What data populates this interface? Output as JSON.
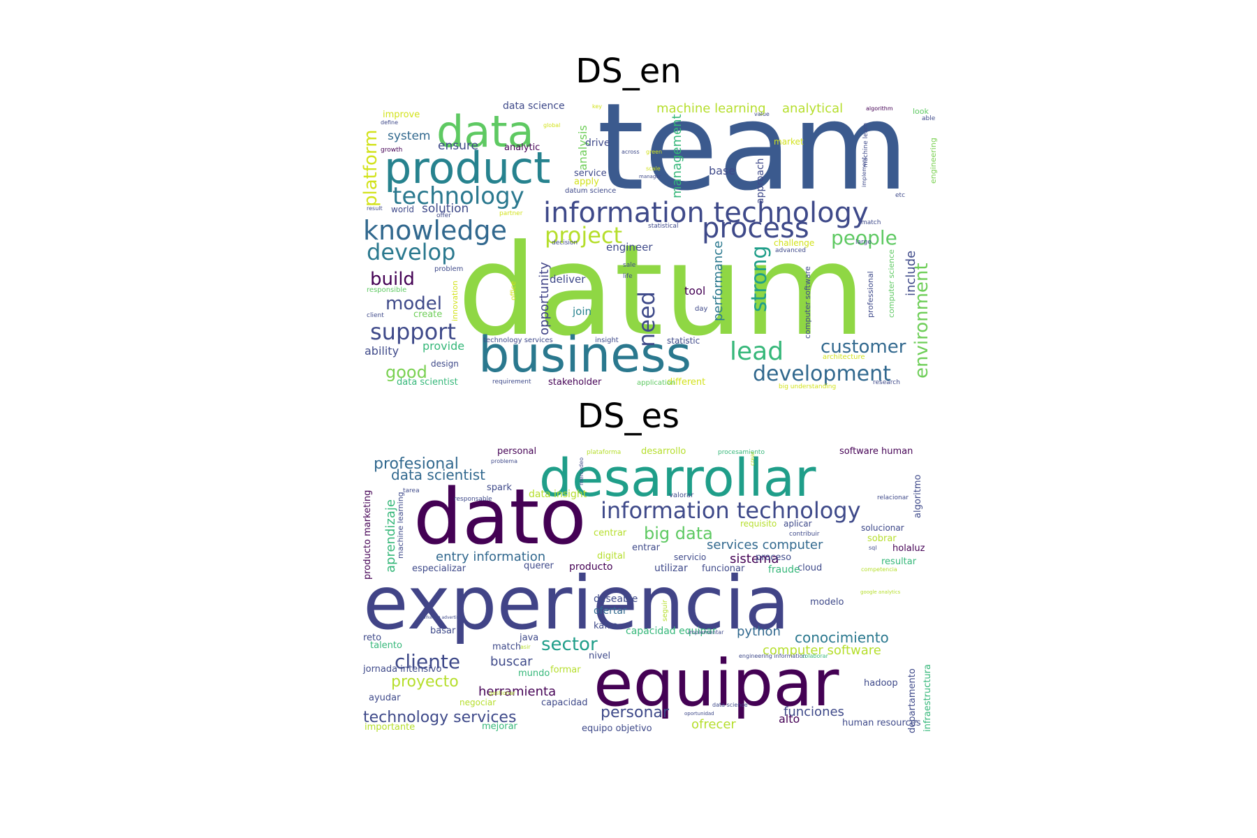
{
  "titles": {
    "en": "DS_en",
    "es": "DS_es"
  },
  "palette": [
    "#440154",
    "#482878",
    "#3e4989",
    "#31688e",
    "#26828e",
    "#1f9e89",
    "#35b779",
    "#6ece58",
    "#b5de2b",
    "#fde725"
  ],
  "clouds": {
    "en": [
      {
        "t": "datum",
        "s": 2,
        "c": "#8fd744"
      },
      {
        "t": "team",
        "s": 6,
        "c": "#3b5a8e"
      },
      {
        "t": "business",
        "s": 14,
        "c": "#2a788e"
      },
      {
        "t": "product",
        "s": 2,
        "c": "#26828e"
      },
      {
        "t": "data",
        "s": 2,
        "c": "#5ec962"
      },
      {
        "t": "information technology",
        "s": 10,
        "c": "#3e4989"
      },
      {
        "t": "process",
        "s": 12,
        "c": "#3e4989"
      },
      {
        "t": "technology",
        "s": 18,
        "c": "#2a788e"
      },
      {
        "t": "knowledge",
        "s": 2,
        "c": "#31688e"
      },
      {
        "t": "project",
        "s": 2,
        "c": "#b5de2b"
      },
      {
        "t": "develop",
        "s": 20,
        "c": "#2a788e"
      },
      {
        "t": "lead",
        "s": 2,
        "c": "#35b779"
      },
      {
        "t": "development",
        "s": 3,
        "c": "#31688e"
      },
      {
        "t": "support",
        "s": 3,
        "c": "#3e4989"
      },
      {
        "t": "customer",
        "s": 4,
        "c": "#31688e"
      },
      {
        "t": "model",
        "s": 2,
        "c": "#3e4989"
      },
      {
        "t": "build",
        "s": 3,
        "c": "#440154"
      },
      {
        "t": "people",
        "s": 2,
        "c": "#5ec962"
      },
      {
        "t": "good",
        "s": 1,
        "c": "#7ad151"
      },
      {
        "t": "environment",
        "s": 4,
        "c": "#6ece58"
      },
      {
        "t": "need",
        "s": 4,
        "c": "#3e4989"
      },
      {
        "t": "strong",
        "s": 2,
        "c": "#1f9e89"
      },
      {
        "t": "platform",
        "s": 5,
        "c": "#d2e21b"
      },
      {
        "t": "opportunity",
        "s": 2,
        "c": "#414487"
      },
      {
        "t": "management",
        "s": 8,
        "c": "#35b779"
      },
      {
        "t": "performance",
        "s": 5,
        "c": "#2a788e"
      },
      {
        "t": "include",
        "s": 4,
        "c": "#3e4989"
      },
      {
        "t": "machine learning",
        "s": 5,
        "c": "#b5de2b"
      },
      {
        "t": "analytical",
        "s": 8,
        "c": "#b5de2b"
      },
      {
        "t": "solution",
        "s": 6,
        "c": "#3e4989"
      },
      {
        "t": "system",
        "s": 7,
        "c": "#31688e"
      },
      {
        "t": "ensure",
        "s": 6,
        "c": "#3e4989"
      },
      {
        "t": "ability",
        "s": 9,
        "c": "#3e4989"
      },
      {
        "t": "provide",
        "s": 4,
        "c": "#35b779"
      },
      {
        "t": "tool",
        "s": 1,
        "c": "#440154"
      },
      {
        "t": "engineer",
        "s": 4,
        "c": "#3e4989"
      },
      {
        "t": "deliver",
        "s": 8,
        "c": "#3e4989"
      },
      {
        "t": "join",
        "s": 3,
        "c": "#26828e"
      },
      {
        "t": "analysis",
        "s": 2,
        "c": "#6ece58"
      },
      {
        "t": "drive",
        "s": 4,
        "c": "#3e4989"
      },
      {
        "t": "base",
        "s": 8,
        "c": "#3e4989"
      },
      {
        "t": "approach",
        "s": 7,
        "c": "#3e4989"
      },
      {
        "t": "service",
        "s": 9,
        "c": "#3e4989"
      },
      {
        "t": "apply",
        "s": 3,
        "c": "#d2e21b"
      },
      {
        "t": "analytic",
        "s": 12,
        "c": "#440154"
      },
      {
        "t": "data science",
        "s": 9,
        "c": "#3e4989"
      },
      {
        "t": "improve",
        "s": 3,
        "c": "#d2e21b"
      },
      {
        "t": "market",
        "s": 3,
        "c": "#d2e21b"
      },
      {
        "t": "challenge",
        "s": 7,
        "c": "#d2e21b"
      },
      {
        "t": "design",
        "s": 4,
        "c": "#3e4989"
      },
      {
        "t": "data scientist",
        "s": 6,
        "c": "#35b779"
      },
      {
        "t": "stakeholder",
        "s": 6,
        "c": "#440154"
      },
      {
        "t": "different",
        "s": 2,
        "c": "#d2e21b"
      },
      {
        "t": "create",
        "s": 5,
        "c": "#6ece58"
      },
      {
        "t": "world",
        "s": 6,
        "c": "#3e4989"
      },
      {
        "t": "statistic",
        "s": 9,
        "c": "#3e4989"
      },
      {
        "t": "computer science",
        "s": 4,
        "c": "#5ec962"
      },
      {
        "t": "professional",
        "s": 4,
        "c": "#3e4989"
      },
      {
        "t": "computer software",
        "s": 6,
        "c": "#3e4989"
      },
      {
        "t": "engineering",
        "s": 6,
        "c": "#7ad151"
      },
      {
        "t": "machine learn",
        "s": 9,
        "c": "#3e4989"
      },
      {
        "t": "implement",
        "s": 3,
        "c": "#3e4989"
      },
      {
        "t": "architecture",
        "s": 3,
        "c": "#d2e21b"
      },
      {
        "t": "research",
        "s": 5,
        "c": "#3e4989"
      },
      {
        "t": "application",
        "s": 6,
        "c": "#5ec962"
      },
      {
        "t": "requirement",
        "s": 5,
        "c": "#3e4989"
      },
      {
        "t": "insight",
        "s": 4,
        "c": "#3e4989"
      },
      {
        "t": "technology services",
        "s": 6,
        "c": "#3e4989"
      },
      {
        "t": "innovation",
        "s": 8,
        "c": "#d2e21b"
      },
      {
        "t": "office",
        "s": 3,
        "c": "#d2e21b"
      },
      {
        "t": "day",
        "s": 9,
        "c": "#3e4989"
      },
      {
        "t": "responsible",
        "s": 4,
        "c": "#5ec962"
      },
      {
        "t": "client",
        "s": 8,
        "c": "#3e4989"
      },
      {
        "t": "problem",
        "s": 6,
        "c": "#3e4989"
      },
      {
        "t": "life",
        "s": 7,
        "c": "#3e4989"
      },
      {
        "t": "sale",
        "s": 8,
        "c": "#3e4989"
      },
      {
        "t": "decision",
        "s": 6,
        "c": "#3e4989"
      },
      {
        "t": "partner",
        "s": 8,
        "c": "#d2e21b"
      },
      {
        "t": "offer",
        "s": 7,
        "c": "#3e4989"
      },
      {
        "t": "result",
        "s": 5,
        "c": "#3e4989"
      },
      {
        "t": "growth",
        "s": 5,
        "c": "#440154"
      },
      {
        "t": "define",
        "s": 6,
        "c": "#3e4989"
      },
      {
        "t": "global",
        "s": 6,
        "c": "#d2e21b"
      },
      {
        "t": "key",
        "s": 3,
        "c": "#d2e21b"
      },
      {
        "t": "value",
        "s": 4,
        "c": "#3e4989"
      },
      {
        "t": "algorithm",
        "s": 6,
        "c": "#440154"
      },
      {
        "t": "look",
        "s": 4,
        "c": "#5ec962"
      },
      {
        "t": "able",
        "s": 8,
        "c": "#3e4989"
      },
      {
        "t": "datum science",
        "s": 6,
        "c": "#3e4989"
      },
      {
        "t": "manager",
        "s": 7,
        "c": "#3e4989"
      },
      {
        "t": "statistical",
        "s": 5,
        "c": "#3e4989"
      },
      {
        "t": "match",
        "s": 8,
        "c": "#3e4989"
      },
      {
        "t": "large",
        "s": 9,
        "c": "#3e4989"
      },
      {
        "t": "advanced",
        "s": 9,
        "c": "#3e4989"
      },
      {
        "t": "etc",
        "s": 3,
        "c": "#3e4989"
      },
      {
        "t": "big understanding",
        "s": 4,
        "c": "#d2e21b"
      },
      {
        "t": "green",
        "s": 5,
        "c": "#d2e21b"
      },
      {
        "t": "scale",
        "s": 3,
        "c": "#d2e21b"
      },
      {
        "t": "across",
        "s": 3,
        "c": "#3e4989"
      }
    ],
    "es": [
      {
        "t": "experiencia",
        "s": 7,
        "c": "#414487"
      },
      {
        "t": "dato",
        "s": 1,
        "c": "#440154"
      },
      {
        "t": "desarrollar",
        "s": 3,
        "c": "#1f9e89"
      },
      {
        "t": "equipar",
        "s": 11,
        "c": "#440154"
      },
      {
        "t": "information technology",
        "s": 7,
        "c": "#3e4989"
      },
      {
        "t": "cliente",
        "s": 2,
        "c": "#3e4989"
      },
      {
        "t": "sector",
        "s": 9,
        "c": "#1f9e89"
      },
      {
        "t": "profesional",
        "s": 3,
        "c": "#31688e"
      },
      {
        "t": "big data",
        "s": 6,
        "c": "#5ec962"
      },
      {
        "t": "data scientist",
        "s": 5,
        "c": "#31688e"
      },
      {
        "t": "proyecto",
        "s": 3,
        "c": "#b5de2b"
      },
      {
        "t": "conocimiento",
        "s": 2,
        "c": "#2a788e"
      },
      {
        "t": "services computer",
        "s": 9,
        "c": "#31688e"
      },
      {
        "t": "entry information",
        "s": 6,
        "c": "#31688e"
      },
      {
        "t": "aprendizaje",
        "s": 7,
        "c": "#35b779"
      },
      {
        "t": "technology services",
        "s": 10,
        "c": "#3e4989"
      },
      {
        "t": "herramienta",
        "s": 2,
        "c": "#440154"
      },
      {
        "t": "personar",
        "s": 3,
        "c": "#3e4989"
      },
      {
        "t": "computer software",
        "s": 12,
        "c": "#b5de2b"
      },
      {
        "t": "sistema",
        "s": 3,
        "c": "#440154"
      },
      {
        "t": "python",
        "s": 9,
        "c": "#31688e"
      },
      {
        "t": "buscar",
        "s": 2,
        "c": "#3e4989"
      },
      {
        "t": "funciones",
        "s": 10,
        "c": "#3e4989"
      },
      {
        "t": "ofrecer",
        "s": 7,
        "c": "#b5de2b"
      },
      {
        "t": "alto",
        "s": 3,
        "c": "#440154"
      },
      {
        "t": "producto marketing",
        "s": 8,
        "c": "#440154"
      },
      {
        "t": "machine learning",
        "s": 10,
        "c": "#3e4989"
      },
      {
        "t": "departamento",
        "s": 5,
        "c": "#3e4989"
      },
      {
        "t": "infraestructura",
        "s": 12,
        "c": "#35b779"
      },
      {
        "t": "algoritmo",
        "s": 4,
        "c": "#3e4989"
      },
      {
        "t": "data insight",
        "s": 9,
        "c": "#b5de2b"
      },
      {
        "t": "spark",
        "s": 4,
        "c": "#3e4989"
      },
      {
        "t": "personal",
        "s": 10,
        "c": "#440154"
      },
      {
        "t": "desarrollo",
        "s": 3,
        "c": "#b5de2b"
      },
      {
        "t": "software human",
        "s": 5,
        "c": "#440154"
      },
      {
        "t": "plataforma",
        "s": 10,
        "c": "#b5de2b"
      },
      {
        "t": "procesamiento",
        "s": 9,
        "c": "#35b779"
      },
      {
        "t": "problema",
        "s": 6,
        "c": "#3e4989"
      },
      {
        "t": "tarea",
        "s": 6,
        "c": "#3e4989"
      },
      {
        "t": "responsable",
        "s": 6,
        "c": "#3e4989"
      },
      {
        "t": "valorar",
        "s": 8,
        "c": "#3e4989"
      },
      {
        "t": "relacionar",
        "s": 6,
        "c": "#3e4989"
      },
      {
        "t": "requisito",
        "s": 2,
        "c": "#b5de2b"
      },
      {
        "t": "aplicar",
        "s": 12,
        "c": "#3e4989"
      },
      {
        "t": "solucionar",
        "s": 5,
        "c": "#3e4989"
      },
      {
        "t": "centrar",
        "s": 9,
        "c": "#b5de2b"
      },
      {
        "t": "contribuir",
        "s": 4,
        "c": "#3e4989"
      },
      {
        "t": "sobrar",
        "s": 9,
        "c": "#b5de2b"
      },
      {
        "t": "entrar",
        "s": 8,
        "c": "#3e4989"
      },
      {
        "t": "sql",
        "s": 8,
        "c": "#3e4989"
      },
      {
        "t": "holaluz",
        "s": 6,
        "c": "#440154"
      },
      {
        "t": "digital",
        "s": 6,
        "c": "#b5de2b"
      },
      {
        "t": "servicio",
        "s": 5,
        "c": "#3e4989"
      },
      {
        "t": "proceso",
        "s": 8,
        "c": "#3e4989"
      },
      {
        "t": "resultar",
        "s": 2,
        "c": "#35b779"
      },
      {
        "t": "cloud",
        "s": 6,
        "c": "#3e4989"
      },
      {
        "t": "especializar",
        "s": 4,
        "c": "#3e4989"
      },
      {
        "t": "querer",
        "s": 8,
        "c": "#3e4989"
      },
      {
        "t": "producto",
        "s": 10,
        "c": "#440154"
      },
      {
        "t": "utilizar",
        "s": 2,
        "c": "#3e4989"
      },
      {
        "t": "funcionar",
        "s": 7,
        "c": "#3e4989"
      },
      {
        "t": "fraude",
        "s": 3,
        "c": "#35b779"
      },
      {
        "t": "competencia",
        "s": 2,
        "c": "#b5de2b"
      },
      {
        "t": "deseable",
        "s": 6,
        "c": "#3e4989"
      },
      {
        "t": "modelo",
        "s": 3,
        "c": "#3e4989"
      },
      {
        "t": "google analytics",
        "s": 6,
        "c": "#b5de2b"
      },
      {
        "t": "ofertar",
        "s": 4,
        "c": "#31688e"
      },
      {
        "t": "kafka",
        "s": 6,
        "c": "#3e4989"
      },
      {
        "t": "capacidad equipar",
        "s": 6,
        "c": "#35b779"
      },
      {
        "t": "implementar",
        "s": 3,
        "c": "#3e4989"
      },
      {
        "t": "basar",
        "s": 5,
        "c": "#3e4989"
      },
      {
        "t": "reto",
        "s": 7,
        "c": "#3e4989"
      },
      {
        "t": "talento",
        "s": 8,
        "c": "#35b779"
      },
      {
        "t": "match",
        "s": 9,
        "c": "#3e4989"
      },
      {
        "t": "java",
        "s": 9,
        "c": "#3e4989"
      },
      {
        "t": "asir",
        "s": 7,
        "c": "#b5de2b"
      },
      {
        "t": "nivel",
        "s": 10,
        "c": "#3e4989"
      },
      {
        "t": "engineering information",
        "s": 8,
        "c": "#3e4989"
      },
      {
        "t": "colaborar",
        "s": 9,
        "c": "#35b779"
      },
      {
        "t": "jornada intensivo",
        "s": 4,
        "c": "#3e4989"
      },
      {
        "t": "mundo",
        "s": 3,
        "c": "#35b779"
      },
      {
        "t": "formar",
        "s": 3,
        "c": "#b5de2b"
      },
      {
        "t": "hadoop",
        "s": 8,
        "c": "#3e4989"
      },
      {
        "t": "ayudar",
        "s": 5,
        "c": "#3e4989"
      },
      {
        "t": "negociar",
        "s": 3,
        "c": "#b5de2b"
      },
      {
        "t": "capacidad",
        "s": 9,
        "c": "#3e4989"
      },
      {
        "t": "importante",
        "s": 3,
        "c": "#b5de2b"
      },
      {
        "t": "mejorar",
        "s": 8,
        "c": "#35b779"
      },
      {
        "t": "equipo objetivo",
        "s": 4,
        "c": "#3e4989"
      },
      {
        "t": "human resources",
        "s": 5,
        "c": "#3e4989"
      },
      {
        "t": "oportunidad",
        "s": 3,
        "c": "#3e4989"
      },
      {
        "t": "marketing advertising",
        "s": 3,
        "c": "#3e4989"
      },
      {
        "t": "data science",
        "s": 4,
        "c": "#3e4989"
      },
      {
        "t": "mercadeo",
        "s": 4,
        "c": "#3e4989"
      },
      {
        "t": "seguir",
        "s": 8,
        "c": "#b5de2b"
      },
      {
        "t": "crear",
        "s": 7,
        "c": "#b5de2b"
      },
      {
        "t": "gestionar",
        "s": 8,
        "c": "#b5de2b"
      }
    ]
  }
}
